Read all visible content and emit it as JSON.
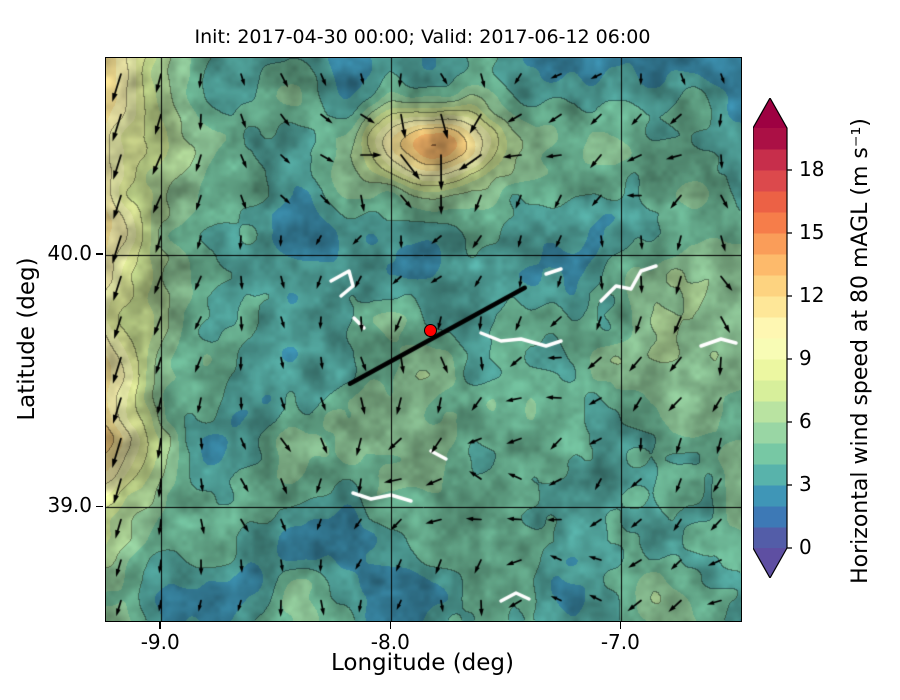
{
  "chart_data": {
    "type": "heatmap",
    "title": "Init: 2017-04-30 00:00; Valid: 2017-06-12 06:00",
    "xlabel": "Longitude (deg)",
    "ylabel": "Latitude (deg)",
    "xlim": [
      -9.24,
      -6.48
    ],
    "ylim": [
      38.55,
      40.78
    ],
    "xticks": {
      "values": [
        -9.0,
        -8.0,
        -7.0
      ],
      "labels": [
        "-9.0",
        "-8.0",
        "-7.0"
      ]
    },
    "yticks": {
      "values": [
        39.0,
        40.0
      ],
      "labels": [
        "39.0",
        "40.0"
      ]
    },
    "grid": true,
    "field": {
      "variable": "horizontal wind speed at 80 m AGL",
      "units": "m s⁻¹",
      "displayed_range": [
        0,
        14
      ],
      "overlays": [
        "wind direction quiver arrows",
        "terrain contour lines",
        "rivers shown in white"
      ]
    },
    "colorbar": {
      "label": "Horizontal wind speed at 80 mAGL (m s⁻¹)",
      "tick_values": [
        0,
        3,
        6,
        9,
        12,
        15,
        18
      ],
      "tick_labels": [
        "0",
        "3",
        "6",
        "9",
        "12",
        "15",
        "18"
      ],
      "range": [
        0,
        20
      ],
      "extend": "both",
      "colormap": "Spectral_r",
      "stops": [
        [
          0.0,
          "#5e4fa2"
        ],
        [
          0.1,
          "#3288bd"
        ],
        [
          0.2,
          "#66c2a5"
        ],
        [
          0.3,
          "#abdda4"
        ],
        [
          0.4,
          "#e6f598"
        ],
        [
          0.5,
          "#ffffbf"
        ],
        [
          0.6,
          "#fee08b"
        ],
        [
          0.7,
          "#fdae61"
        ],
        [
          0.8,
          "#f46d43"
        ],
        [
          0.9,
          "#d53e4f"
        ],
        [
          1.0,
          "#9e0142"
        ]
      ]
    },
    "marker": {
      "lon": -7.83,
      "lat": 39.7,
      "fill": "#ff0000",
      "edge": "#000000"
    },
    "transect_line": {
      "from": [
        -8.18,
        39.49
      ],
      "to": [
        -7.42,
        39.87
      ],
      "color": "#000000"
    },
    "quiver_color": "#000000"
  }
}
